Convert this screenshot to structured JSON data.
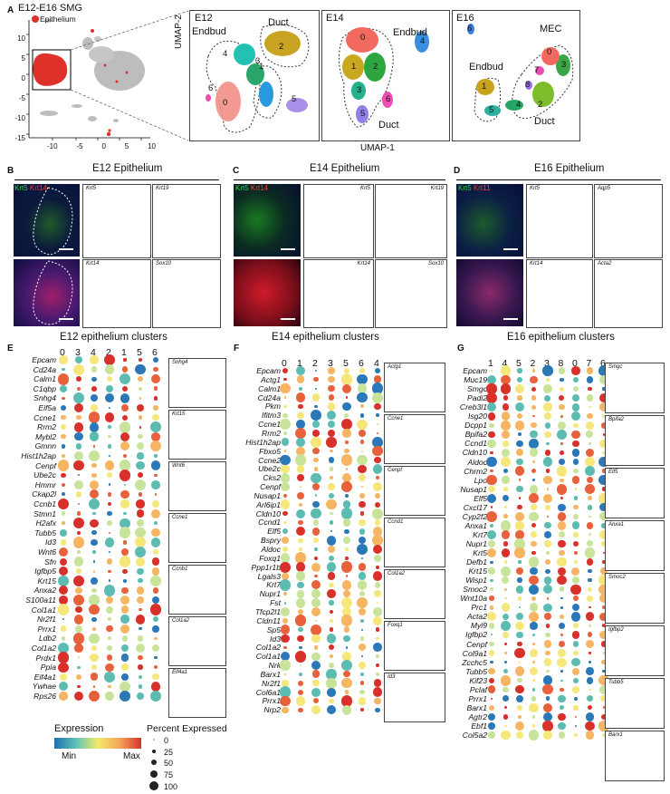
{
  "panelA": {
    "letter": "A",
    "title": "E12-E16 SMG",
    "legend": "Epithelium",
    "xlabel": "UMAP-1",
    "ylabel": "UMAP-2",
    "xticks": [
      "-10",
      "-5",
      "0",
      "5",
      "10"
    ],
    "yticks": [
      "10",
      "5",
      "0",
      "-5",
      "-10",
      "-15"
    ],
    "e12": {
      "title": "E12",
      "labels": {
        "endbud": "Endbud",
        "duct": "Duct"
      },
      "clusters": [
        "0",
        "1",
        "2",
        "3",
        "4",
        "5",
        "6"
      ]
    },
    "e14": {
      "title": "E14",
      "labels": {
        "endbud": "Endbud",
        "duct": "Duct"
      },
      "clusters": [
        "0",
        "1",
        "2",
        "3",
        "4",
        "5",
        "6"
      ]
    },
    "e16": {
      "title": "E16",
      "labels": {
        "mec": "MEC",
        "endbud": "Endbud",
        "duct": "Duct"
      },
      "clusters": [
        "0",
        "1",
        "2",
        "3",
        "4",
        "5",
        "6",
        "7",
        "8"
      ]
    },
    "colors": {
      "epithelium": "#e0302a",
      "other": "#bdbdbd"
    }
  },
  "panelB": {
    "letter": "B",
    "title": "E12 Epithelium",
    "stain1": "Krt5",
    "stain2": "Krt14",
    "genes": [
      "Krt5",
      "Krt19",
      "Krt14",
      "Sox10"
    ]
  },
  "panelC": {
    "letter": "C",
    "title": "E14 Epithelium",
    "stain1": "Krt5",
    "stain2": "Krt14",
    "genes": [
      "Krt5",
      "Krt19",
      "Krt14",
      "Sox10"
    ]
  },
  "panelD": {
    "letter": "D",
    "title": "E16 Epithelium",
    "stain1": "Krt5",
    "stain2": "Krt11",
    "genes": [
      "Krt5",
      "Aqp5",
      "Krt14",
      "Acta2"
    ]
  },
  "panelE": {
    "letter": "E",
    "title": "E12 epithelium clusters",
    "clusters": [
      "0",
      "3",
      "4",
      "2",
      "1",
      "5",
      "6"
    ],
    "genes": [
      "Epcam",
      "Cd24a",
      "Calm1",
      "C1qbp",
      "Snhg4",
      "Eif5a",
      "Ccne1",
      "Rrm2",
      "Mybl2",
      "Gmnn",
      "Hist1h2ap",
      "Cenpf",
      "Ube2c",
      "Hmmr",
      "Ckap2l",
      "Ccnb1",
      "Stmn1",
      "H2afx",
      "Tubb5",
      "Id3",
      "Wnt6",
      "Sfn",
      "Igfbp5",
      "Krt15",
      "Anxa2",
      "S100a11",
      "Col1a1",
      "Nr2f1",
      "Prrx1",
      "Ldb2",
      "Col1a2",
      "Prdx1",
      "Ppia",
      "Eif4a1",
      "Ywhae",
      "Rps26"
    ],
    "featureplots": [
      "Snhg4",
      "Krt15",
      "Wnt6",
      "Ccne1",
      "Ccnb1",
      "Col1a2",
      "Eif4a1"
    ]
  },
  "panelF": {
    "letter": "F",
    "title": "E14 epithelium clusters",
    "clusters": [
      "0",
      "1",
      "2",
      "3",
      "5",
      "6",
      "4"
    ],
    "genes": [
      "Epcam",
      "Actg1",
      "Calm1",
      "Cd24a",
      "Pkm",
      "Ifitm3",
      "Ccne1",
      "Rrm2",
      "Hist1h2ap",
      "Fbxo5",
      "Ccne2",
      "Ube2c",
      "Cks2",
      "Cenpf",
      "Nusap1",
      "Arl6ip1",
      "Cldn10",
      "Ccnd1",
      "Elf5",
      "Bspry",
      "Aldoc",
      "Foxq1",
      "Ppp1r1b",
      "Lgals3",
      "Krt7",
      "Nupr1",
      "Fst",
      "Tfcp2l1",
      "Cldn11",
      "Sp5",
      "Id3",
      "Col1a2",
      "Col1a1",
      "Nrk",
      "Barx1",
      "Nr2f1",
      "Col6a1",
      "Prrx1",
      "Nrp2"
    ],
    "featureplots": [
      "Actg1",
      "Ccne1",
      "Cenpf",
      "Ccnd1",
      "Col1a2",
      "Foxq1",
      "Id3"
    ]
  },
  "panelG": {
    "letter": "G",
    "title": "E16 epithelium clusters",
    "clusters": [
      "1",
      "4",
      "5",
      "2",
      "3",
      "8",
      "0",
      "7",
      "6"
    ],
    "genes": [
      "Epcam",
      "Muc19",
      "Smgc",
      "Padi2",
      "Creb3l1",
      "Isg20",
      "Dcpp1",
      "Bpifa2",
      "Ccnd1",
      "Cldn10",
      "Aldoc",
      "Chrm2",
      "Lpo",
      "Nusap1",
      "Elf5",
      "Cxcl17",
      "Cyp2f2",
      "Anxa1",
      "Krt7",
      "Nupr1",
      "Krt5",
      "Defb1",
      "Krt15",
      "Wisp1",
      "Smoc2",
      "Wnt10a",
      "Prc1",
      "Acta2",
      "Myl9",
      "Igfbp2",
      "Cenpf",
      "Col9a1",
      "Zcchc5",
      "Tubb5",
      "Kif23",
      "Pclaf",
      "Prrx1",
      "Barx1",
      "Agtr2",
      "Ebf1",
      "Col5a2"
    ],
    "featureplots": [
      "Smgc",
      "Bpifa2",
      "Elf5",
      "Anxa1",
      "Smoc2",
      "Igfbp2",
      "Tubb5",
      "Barx1"
    ]
  },
  "legend": {
    "expression_title": "Expression",
    "min": "Min",
    "max": "Max",
    "percent_title": "Percent Expressed",
    "percent_values": [
      "0",
      "25",
      "50",
      "75",
      "100"
    ]
  }
}
